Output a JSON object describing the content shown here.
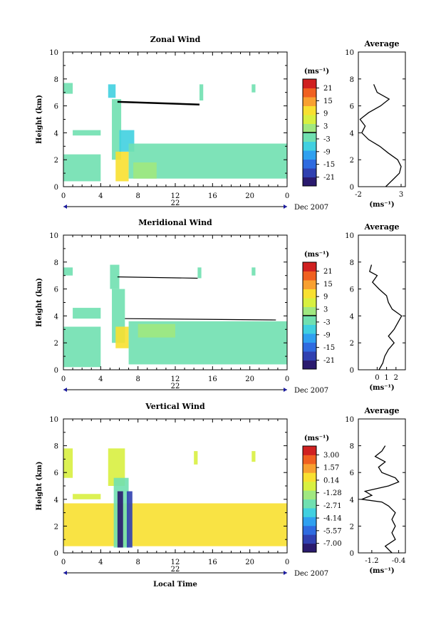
{
  "chart_data": [
    {
      "type": "heatmap",
      "title": "Zonal Wind",
      "ylabel": "Height (km)",
      "ylim": [
        0,
        10
      ],
      "yticks": [
        "0",
        "2",
        "4",
        "6",
        "8",
        "10"
      ],
      "xticks": [
        "0",
        "4",
        "8",
        "12",
        "16",
        "20",
        "0"
      ],
      "date_label": "22",
      "date_suffix": "Dec 2007",
      "colorbar": {
        "unit": "(ms⁻¹)",
        "ticks": [
          "21",
          "15",
          "9",
          "3",
          "-3",
          "-9",
          "-15",
          "-21"
        ],
        "colors": [
          "#2a1a6e",
          "#3040b0",
          "#2f6be0",
          "#2fa0f0",
          "#40d0e0",
          "#70e0b0",
          "#a0e880",
          "#d8f040",
          "#f8e030",
          "#f8a030",
          "#f06020",
          "#d02020"
        ]
      },
      "cells": [
        {
          "t": [
            0,
            4
          ],
          "z": [
            0.4,
            2.4
          ],
          "v": -1
        },
        {
          "t": [
            0,
            1
          ],
          "z": [
            6.9,
            7.7
          ],
          "v": -1
        },
        {
          "t": [
            1,
            4
          ],
          "z": [
            3.8,
            4.2
          ],
          "v": -2
        },
        {
          "t": [
            4.8,
            5.6
          ],
          "z": [
            6.6,
            7.6
          ],
          "v": -4
        },
        {
          "t": [
            5.2,
            6.2
          ],
          "z": [
            2.0,
            6.5
          ],
          "v": -3
        },
        {
          "t": [
            5.6,
            7
          ],
          "z": [
            0.4,
            2.6
          ],
          "v": 7
        },
        {
          "t": [
            6,
            7.6
          ],
          "z": [
            2.6,
            4.2
          ],
          "v": -6
        },
        {
          "t": [
            7,
            24
          ],
          "z": [
            0.6,
            3.2
          ],
          "v": -1
        },
        {
          "t": [
            7.5,
            10
          ],
          "z": [
            0.6,
            1.8
          ],
          "v": 2
        },
        {
          "t": [
            14.6,
            15
          ],
          "z": [
            6.4,
            7.6
          ],
          "v": -1
        },
        {
          "t": [
            20.2,
            20.6
          ],
          "z": [
            7.0,
            7.6
          ],
          "v": -1
        }
      ],
      "lines": [
        {
          "t": [
            5.8,
            14.6
          ],
          "z": [
            6.3,
            6.1
          ],
          "width": 2.5
        }
      ],
      "average": {
        "xlim": [
          -2,
          3.5
        ],
        "xticks": [
          "-2",
          "3"
        ],
        "xlabel": "(ms⁻¹)",
        "title": "Average",
        "profile": [
          {
            "z": 0.0,
            "v": 1.2
          },
          {
            "z": 0.5,
            "v": 2.0
          },
          {
            "z": 1.0,
            "v": 2.8
          },
          {
            "z": 1.5,
            "v": 3.0
          },
          {
            "z": 2.0,
            "v": 2.6
          },
          {
            "z": 2.5,
            "v": 1.5
          },
          {
            "z": 3.0,
            "v": 0.5
          },
          {
            "z": 3.5,
            "v": -0.8
          },
          {
            "z": 4.0,
            "v": -1.6
          },
          {
            "z": 4.5,
            "v": -1.2
          },
          {
            "z": 5.0,
            "v": -1.8
          },
          {
            "z": 5.5,
            "v": -0.8
          },
          {
            "z": 6.0,
            "v": 0.6
          },
          {
            "z": 6.5,
            "v": 1.6
          },
          {
            "z": 7.0,
            "v": 0.2
          },
          {
            "z": 7.6,
            "v": -0.2
          }
        ]
      }
    },
    {
      "type": "heatmap",
      "title": "Meridional Wind",
      "ylabel": "Height (km)",
      "ylim": [
        0,
        10
      ],
      "yticks": [
        "0",
        "2",
        "4",
        "6",
        "8",
        "10"
      ],
      "xticks": [
        "0",
        "4",
        "8",
        "12",
        "16",
        "20",
        "0"
      ],
      "date_label": "22",
      "date_suffix": "Dec 2007",
      "colorbar": {
        "unit": "(ms⁻¹)",
        "ticks": [
          "21",
          "15",
          "9",
          "3",
          "-3",
          "-9",
          "-15",
          "-21"
        ],
        "colors": [
          "#2a1a6e",
          "#3040b0",
          "#2f6be0",
          "#2fa0f0",
          "#40d0e0",
          "#70e0b0",
          "#a0e880",
          "#d8f040",
          "#f8e030",
          "#f8a030",
          "#f06020",
          "#d02020"
        ]
      },
      "cells": [
        {
          "t": [
            0,
            4
          ],
          "z": [
            0.2,
            3.2
          ],
          "v": -1
        },
        {
          "t": [
            0,
            1
          ],
          "z": [
            7.0,
            7.6
          ],
          "v": -3
        },
        {
          "t": [
            1,
            4
          ],
          "z": [
            3.8,
            4.6
          ],
          "v": -1
        },
        {
          "t": [
            5,
            6
          ],
          "z": [
            6.0,
            7.8
          ],
          "v": -2
        },
        {
          "t": [
            5.2,
            6.6
          ],
          "z": [
            2.0,
            6.0
          ],
          "v": -3
        },
        {
          "t": [
            5.6,
            7
          ],
          "z": [
            1.6,
            3.2
          ],
          "v": 7
        },
        {
          "t": [
            7,
            24
          ],
          "z": [
            0.4,
            3.6
          ],
          "v": -2
        },
        {
          "t": [
            8,
            12
          ],
          "z": [
            2.4,
            3.4
          ],
          "v": 3
        },
        {
          "t": [
            14.4,
            14.8
          ],
          "z": [
            6.8,
            7.6
          ],
          "v": -1
        },
        {
          "t": [
            20.2,
            20.6
          ],
          "z": [
            7.0,
            7.6
          ],
          "v": -1
        }
      ],
      "lines": [
        {
          "t": [
            5.8,
            14.4
          ],
          "z": [
            6.9,
            6.8
          ],
          "width": 1.2
        },
        {
          "t": [
            6.6,
            22.8
          ],
          "z": [
            3.8,
            3.7
          ],
          "width": 1.2
        }
      ],
      "average": {
        "xlim": [
          -2,
          3
        ],
        "xticks": [
          "0",
          "1",
          "2"
        ],
        "xlabel": "(ms⁻¹)",
        "title": "Average",
        "profile": [
          {
            "z": 0.0,
            "v": 0.2
          },
          {
            "z": 0.5,
            "v": 0.6
          },
          {
            "z": 1.0,
            "v": 0.8
          },
          {
            "z": 1.5,
            "v": 1.2
          },
          {
            "z": 2.0,
            "v": 1.8
          },
          {
            "z": 2.5,
            "v": 1.2
          },
          {
            "z": 3.0,
            "v": 1.8
          },
          {
            "z": 3.5,
            "v": 2.2
          },
          {
            "z": 4.0,
            "v": 2.6
          },
          {
            "z": 4.5,
            "v": 1.6
          },
          {
            "z": 5.0,
            "v": 1.2
          },
          {
            "z": 5.5,
            "v": 1.0
          },
          {
            "z": 6.0,
            "v": 0.2
          },
          {
            "z": 6.5,
            "v": -0.5
          },
          {
            "z": 7.0,
            "v": 0.0
          },
          {
            "z": 7.3,
            "v": -0.8
          },
          {
            "z": 7.8,
            "v": -0.6
          }
        ]
      }
    },
    {
      "type": "heatmap",
      "title": "Vertical Wind",
      "ylabel": "Height (km)",
      "xlabel": "Local Time",
      "ylim": [
        0,
        10
      ],
      "yticks": [
        "0",
        "2",
        "4",
        "6",
        "8",
        "10"
      ],
      "xticks": [
        "0",
        "4",
        "8",
        "12",
        "16",
        "20",
        "0"
      ],
      "date_label": "22",
      "date_suffix": "Dec 2007",
      "colorbar": {
        "unit": "(ms⁻¹)",
        "ticks": [
          "3.00",
          "1.57",
          "0.14",
          "-1.28",
          "-2.71",
          "-4.14",
          "-5.57",
          "-7.00"
        ],
        "colors": [
          "#2a1a6e",
          "#3040b0",
          "#2f6be0",
          "#2fa0f0",
          "#40d0e0",
          "#70e0b0",
          "#a0e880",
          "#d8f040",
          "#f8e030",
          "#f8a030",
          "#f06020",
          "#d02020"
        ]
      },
      "cells": [
        {
          "t": [
            0,
            1
          ],
          "z": [
            5.6,
            7.8
          ],
          "v": -0.4
        },
        {
          "t": [
            1,
            4
          ],
          "z": [
            4.0,
            4.4
          ],
          "v": -0.4
        },
        {
          "t": [
            0,
            24
          ],
          "z": [
            0.5,
            3.7
          ],
          "v": -0.3
        },
        {
          "t": [
            4.8,
            6.6
          ],
          "z": [
            5.0,
            7.8
          ],
          "v": -0.9
        },
        {
          "t": [
            5.4,
            7
          ],
          "z": [
            0.4,
            5.6
          ],
          "v": -2.4
        },
        {
          "t": [
            5.8,
            6.4
          ],
          "z": [
            0.4,
            4.6
          ],
          "v": -6.2
        },
        {
          "t": [
            6.8,
            7.4
          ],
          "z": [
            0.4,
            4.6
          ],
          "v": -5.4
        },
        {
          "t": [
            14,
            14.4
          ],
          "z": [
            6.6,
            7.6
          ],
          "v": -0.6
        },
        {
          "t": [
            20.2,
            20.6
          ],
          "z": [
            6.8,
            7.6
          ],
          "v": -0.6
        }
      ],
      "lines": [],
      "average": {
        "xlim": [
          -1.6,
          -0.2
        ],
        "xticks": [
          "-1.2",
          "-0.4"
        ],
        "xlabel": "(ms⁻¹)",
        "title": "Average",
        "profile": [
          {
            "z": 0.0,
            "v": -0.6
          },
          {
            "z": 0.5,
            "v": -0.8
          },
          {
            "z": 1.0,
            "v": -0.5
          },
          {
            "z": 1.5,
            "v": -0.6
          },
          {
            "z": 2.0,
            "v": -0.5
          },
          {
            "z": 2.5,
            "v": -0.6
          },
          {
            "z": 3.0,
            "v": -0.5
          },
          {
            "z": 3.5,
            "v": -0.7
          },
          {
            "z": 3.8,
            "v": -0.9
          },
          {
            "z": 4.0,
            "v": -1.5
          },
          {
            "z": 4.3,
            "v": -1.2
          },
          {
            "z": 4.6,
            "v": -1.4
          },
          {
            "z": 5.0,
            "v": -0.7
          },
          {
            "z": 5.3,
            "v": -0.4
          },
          {
            "z": 5.6,
            "v": -0.5
          },
          {
            "z": 6.0,
            "v": -0.9
          },
          {
            "z": 6.4,
            "v": -1.0
          },
          {
            "z": 6.8,
            "v": -0.8
          },
          {
            "z": 7.2,
            "v": -1.1
          },
          {
            "z": 7.6,
            "v": -0.9
          },
          {
            "z": 8.0,
            "v": -0.8
          }
        ]
      }
    }
  ]
}
